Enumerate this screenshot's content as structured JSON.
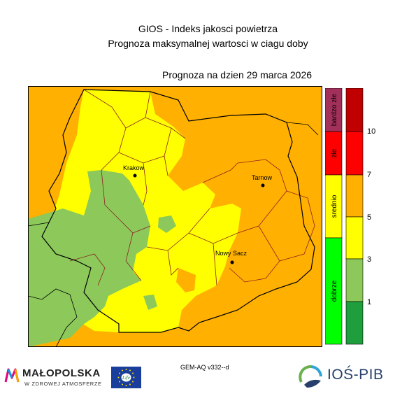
{
  "header": {
    "title_line1": "GIOS - Indeks jakosci powietrza",
    "title_line2": "Prognoza maksymalnej wartosci w ciagu doby",
    "forecast_date": "Prognoza na dzien  29 marca 2026"
  },
  "map": {
    "colors": {
      "bardzo_dobry": "#1e9e3c",
      "dobry": "#8cc85a",
      "umiarkowany": "#ffff00",
      "dostateczny": "#ffb000",
      "zly": "#ff0000",
      "bardzo_zly": "#c00000"
    },
    "cities": [
      {
        "name": "Krakow"
      },
      {
        "name": "Tarnow"
      },
      {
        "name": "Nowy Sacz"
      }
    ]
  },
  "legend": {
    "categories": [
      {
        "label": "bardzo złe",
        "color": "#a3305a"
      },
      {
        "label": "złe",
        "color": "#ff0000"
      },
      {
        "label": "srednio",
        "color": "#ffff00"
      },
      {
        "label": "dobrze",
        "color": "#00ff00"
      }
    ],
    "scale_colors": [
      "#1e9e3c",
      "#8cc85a",
      "#ffff00",
      "#ffb000",
      "#ff0000",
      "#c00000"
    ],
    "ticks": [
      "1",
      "3",
      "5",
      "7",
      "10"
    ]
  },
  "footer": {
    "model_label": "GEM-AQ v332--d",
    "logo_malopolska": "MAŁOPOLSKA",
    "logo_malopolska_sub": "W ZDROWEJ ATMOSFERZE",
    "logo_eu_text": "Life",
    "logo_ios": "IOŚ-PIB"
  }
}
